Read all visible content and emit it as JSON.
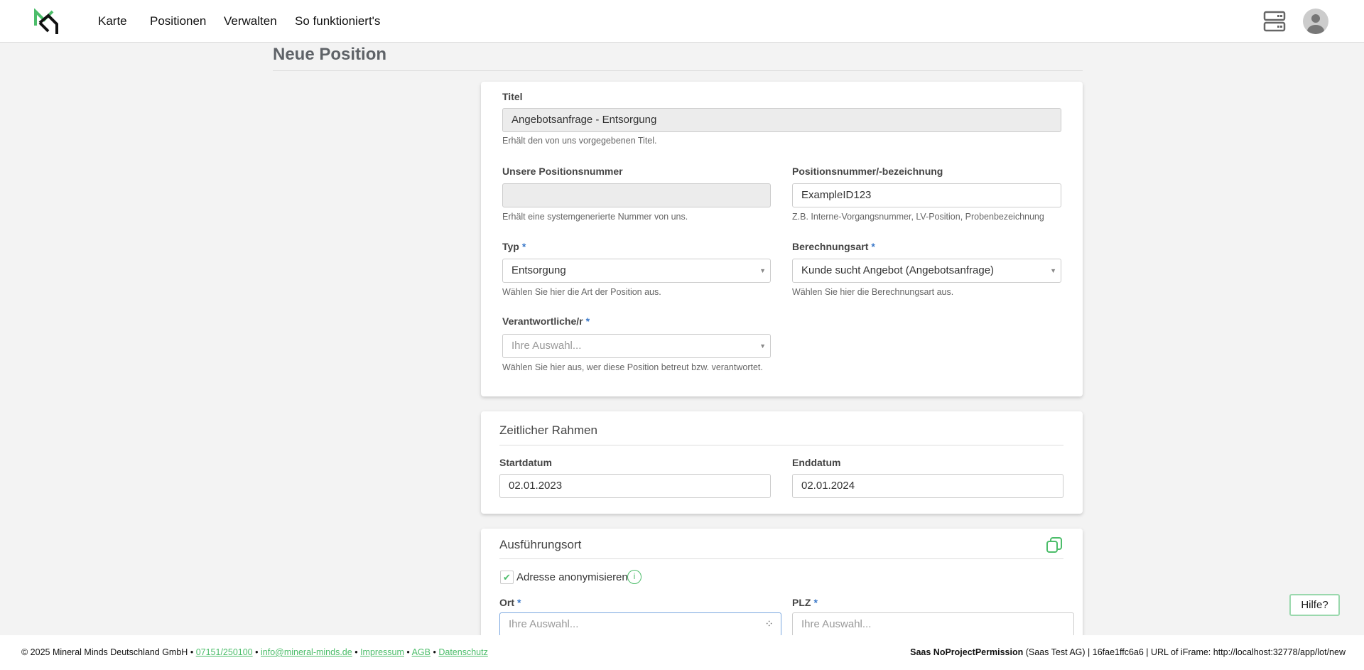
{
  "nav": {
    "items": [
      "Karte",
      "Positionen",
      "Verwalten",
      "So funktioniert's"
    ]
  },
  "page": {
    "title": "Neue Position"
  },
  "card1": {
    "titel": {
      "label": "Titel",
      "value": "Angebotsanfrage - Entsorgung",
      "help": "Erhält den von uns vorgegebenen Titel."
    },
    "unsere_nummer": {
      "label": "Unsere Positionsnummer",
      "value": "",
      "help": "Erhält eine systemgenerierte Nummer von uns."
    },
    "positionsnummer": {
      "label": "Positionsnummer/-bezeichnung",
      "value": "ExampleID123",
      "help": "Z.B. Interne-Vorgangsnummer, LV-Position, Probenbezeichnung"
    },
    "typ": {
      "label": "Typ",
      "required": "*",
      "value": "Entsorgung",
      "help": "Wählen Sie hier die Art der Position aus."
    },
    "berechnungsart": {
      "label": "Berechnungsart",
      "required": "*",
      "value": "Kunde sucht Angebot (Angebotsanfrage)",
      "help": "Wählen Sie hier die Berechnungsart aus."
    },
    "verantwortlich": {
      "label": "Verantwortliche/r",
      "required": "*",
      "placeholder": "Ihre Auswahl...",
      "help": "Wählen Sie hier aus, wer diese Position betreut bzw. verantwortet."
    }
  },
  "card2": {
    "title": "Zeitlicher Rahmen",
    "start": {
      "label": "Startdatum",
      "value": "02.01.2023"
    },
    "end": {
      "label": "Enddatum",
      "value": "02.01.2024"
    }
  },
  "card3": {
    "title": "Ausführungsort",
    "anonymize": {
      "label": "Adresse anonymisieren",
      "checked": true
    },
    "ort": {
      "label": "Ort",
      "required": "*",
      "placeholder": "Ihre Auswahl..."
    },
    "plz": {
      "label": "PLZ",
      "required": "*",
      "placeholder": "Ihre Auswahl..."
    }
  },
  "footer": {
    "copyright": "© 2025 Mineral Minds Deutschland GmbH",
    "sep": "•",
    "phone": "07151/250100",
    "email": "info@mineral-minds.de",
    "impressum": "Impressum",
    "agb": "AGB",
    "datenschutz": "Datenschutz",
    "user": "Saas NoProjectPermission",
    "info": " (Saas Test AG) | 16fae1ffc6a6 | URL of iFrame: http://localhost:32778/app/lot/new"
  },
  "help_button": "Hilfe?",
  "colors": {
    "accent": "#4cbd6a",
    "required": "#3a78c9",
    "background": "#f3f3f3"
  }
}
